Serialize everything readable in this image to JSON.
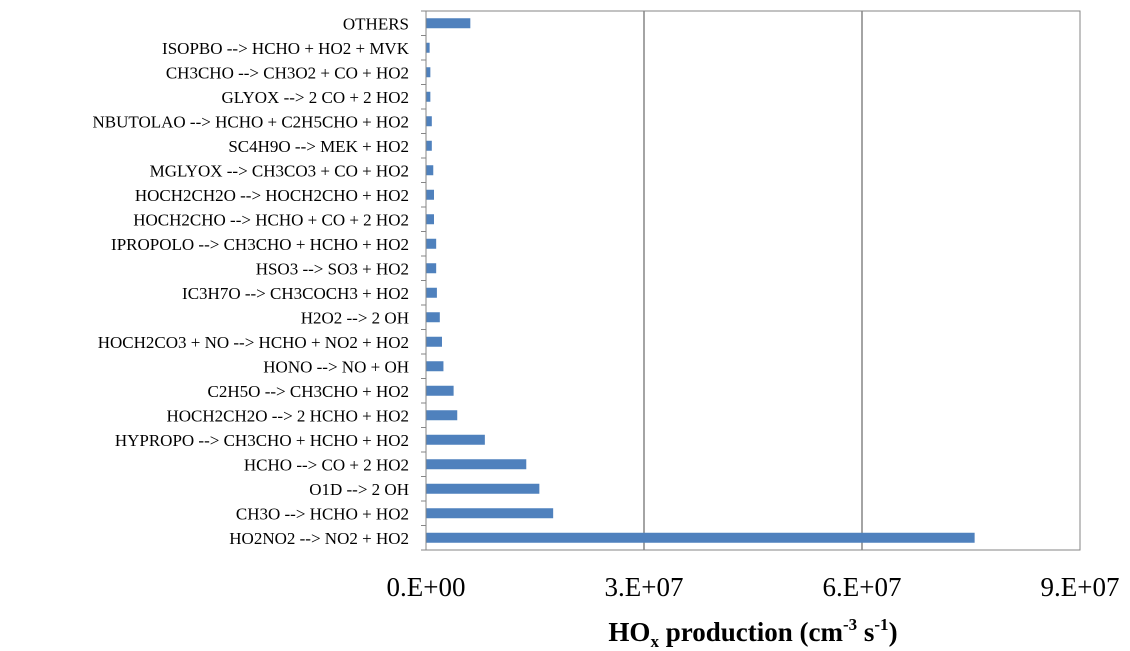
{
  "chart_data": {
    "type": "bar",
    "orientation": "horizontal",
    "categories": [
      "HO2NO2 --> NO2 + HO2",
      "CH3O --> HCHO + HO2",
      "O1D --> 2 OH",
      "HCHO --> CO + 2 HO2",
      "HYPROPO --> CH3CHO + HCHO + HO2",
      "HOCH2CH2O --> 2 HCHO + HO2",
      "C2H5O --> CH3CHO + HO2",
      "HONO --> NO + OH",
      "HOCH2CO3 + NO --> HCHO + NO2 + HO2",
      "H2O2 --> 2 OH",
      "IC3H7O --> CH3COCH3 + HO2",
      "HSO3 --> SO3 + HO2",
      "IPROPOLO --> CH3CHO + HCHO + HO2",
      "HOCH2CHO --> HCHO + CO + 2 HO2",
      "HOCH2CH2O --> HOCH2CHO + HO2",
      "MGLYOX --> CH3CO3 + CO + HO2",
      "SC4H9O --> MEK + HO2",
      "NBUTOLAO --> HCHO + C2H5CHO + HO2",
      "GLYOX --> 2 CO + 2 HO2",
      "CH3CHO --> CH3O2 + CO + HO2",
      "ISOPBO --> HCHO + HO2 + MVK",
      "OTHERS"
    ],
    "values": [
      75500000,
      17500000,
      15600000,
      13800000,
      8100000,
      4300000,
      3800000,
      2400000,
      2200000,
      1900000,
      1500000,
      1400000,
      1400000,
      1100000,
      1100000,
      1000000,
      800000,
      800000,
      600000,
      600000,
      500000,
      6100000
    ],
    "xlim": [
      0,
      90000000
    ],
    "xticks": [
      "0.E+00",
      "3.E+07",
      "6.E+07",
      "9.E+07"
    ],
    "xlabel": {
      "main": "HO",
      "sub": "x",
      "text": " production (cm",
      "sup1": "-3",
      "mid": " s",
      "sup2": "-1",
      "end": ")"
    },
    "grid": "vertical",
    "bar_color": "#4f81bd"
  }
}
